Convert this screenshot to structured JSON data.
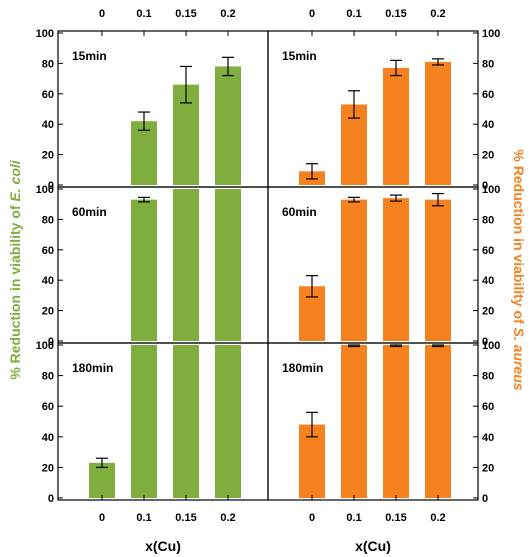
{
  "chart_data": {
    "type": "bar",
    "categories": [
      "0",
      "0.1",
      "0.15",
      "0.2"
    ],
    "xlabel": "x(Cu)",
    "yticks": [
      "0",
      "20",
      "40",
      "60",
      "80",
      "100"
    ],
    "ylim": [
      0,
      100
    ],
    "ylabel_left": {
      "prefix": "% Reduction in viability of ",
      "organism": "E. coli",
      "color": "#7fad3e"
    },
    "ylabel_right": {
      "prefix": "% Reduction in viability of ",
      "organism": "S. aureus",
      "color": "#f5821f"
    },
    "panels": [
      {
        "organism": "E. coli",
        "time": "15min",
        "values": [
          0,
          42,
          66,
          78
        ],
        "errors": [
          0,
          6,
          12,
          6
        ]
      },
      {
        "organism": "S. aureus",
        "time": "15min",
        "values": [
          9,
          53,
          77,
          81
        ],
        "errors": [
          5,
          9,
          5,
          2
        ]
      },
      {
        "organism": "E. coli",
        "time": "60min",
        "values": [
          0,
          93,
          100,
          100
        ],
        "errors": [
          0,
          1.5,
          0,
          0
        ]
      },
      {
        "organism": "S. aureus",
        "time": "60min",
        "values": [
          36,
          93,
          94,
          93
        ],
        "errors": [
          7,
          1.5,
          2,
          4
        ]
      },
      {
        "organism": "E. coli",
        "time": "180min",
        "values": [
          23,
          100,
          100,
          100
        ],
        "errors": [
          3,
          0,
          0,
          0
        ]
      },
      {
        "organism": "S. aureus",
        "time": "180min",
        "values": [
          48,
          100,
          100,
          100
        ],
        "errors": [
          8,
          1,
          1,
          1
        ]
      }
    ]
  }
}
